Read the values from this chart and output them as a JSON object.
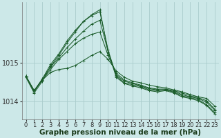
{
  "background_color": "#cce8e8",
  "grid_color": "#aacccc",
  "line_color": "#1a5c2a",
  "marker_color": "#1a5c2a",
  "xlabel": "Graphe pression niveau de la mer (hPa)",
  "xlabel_fontsize": 7.5,
  "ylabel_fontsize": 7,
  "tick_fontsize": 6,
  "xlim": [
    -0.5,
    23.5
  ],
  "ylim": [
    1013.55,
    1016.55
  ],
  "yticks": [
    1014,
    1015
  ],
  "xticks": [
    0,
    1,
    2,
    3,
    4,
    5,
    6,
    7,
    8,
    9,
    10,
    11,
    12,
    13,
    14,
    15,
    16,
    17,
    18,
    19,
    20,
    21,
    22,
    23
  ],
  "series": [
    [
      1014.65,
      1014.28,
      1014.55,
      1014.75,
      1014.82,
      1014.85,
      1014.92,
      1015.05,
      1015.18,
      1015.28,
      1015.08,
      1014.78,
      1014.62,
      1014.52,
      1014.48,
      1014.42,
      1014.38,
      1014.35,
      1014.3,
      1014.25,
      1014.18,
      1014.12,
      1014.08,
      1013.88
    ],
    [
      1014.65,
      1014.28,
      1014.55,
      1014.82,
      1015.08,
      1015.28,
      1015.48,
      1015.62,
      1015.72,
      1015.78,
      1015.18,
      1014.72,
      1014.55,
      1014.48,
      1014.42,
      1014.35,
      1014.32,
      1014.32,
      1014.28,
      1014.22,
      1014.15,
      1014.1,
      1014.02,
      1013.8
    ],
    [
      1014.65,
      1014.28,
      1014.58,
      1014.88,
      1015.12,
      1015.38,
      1015.6,
      1015.8,
      1015.98,
      1016.08,
      1015.28,
      1014.68,
      1014.52,
      1014.46,
      1014.4,
      1014.33,
      1014.3,
      1014.3,
      1014.26,
      1014.18,
      1014.12,
      1014.08,
      1013.98,
      1013.78
    ],
    [
      1014.65,
      1014.25,
      1014.58,
      1014.95,
      1015.22,
      1015.55,
      1015.82,
      1016.05,
      1016.2,
      1016.3,
      1015.32,
      1014.65,
      1014.48,
      1014.43,
      1014.38,
      1014.3,
      1014.28,
      1014.3,
      1014.24,
      1014.15,
      1014.1,
      1014.05,
      1013.92,
      1013.72
    ],
    [
      1014.62,
      1014.22,
      1014.52,
      1014.9,
      1015.18,
      1015.5,
      1015.78,
      1016.05,
      1016.22,
      1016.35,
      1015.28,
      1014.62,
      1014.46,
      1014.4,
      1014.35,
      1014.28,
      1014.25,
      1014.28,
      1014.22,
      1014.12,
      1014.08,
      1014.02,
      1013.9,
      1013.68
    ]
  ]
}
